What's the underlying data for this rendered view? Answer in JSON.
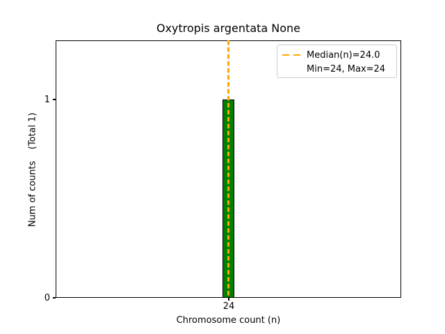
{
  "chart_data": {
    "type": "bar",
    "title": "Oxytropis argentata None",
    "xlabel": "Chromosome count (n)",
    "ylabel": "Num of counts    (Total 1)",
    "categories": [
      "24"
    ],
    "values": [
      1
    ],
    "total_counts": 1,
    "xticks": [
      "24"
    ],
    "yticks": [
      "0",
      "1"
    ],
    "ylim": [
      0,
      1.3
    ],
    "grid": false,
    "bar_color": "#008000",
    "bar_edge_color": "#000000",
    "median_line": {
      "value": 24.0,
      "color": "#FFA500",
      "style": "dashed",
      "orientation": "vertical"
    },
    "legend": {
      "position": "upper right",
      "entries": [
        {
          "label": "Median(n)=24.0",
          "marker": "dashed-line",
          "marker_color": "#FFA500"
        },
        {
          "label": "Min=24, Max=24",
          "marker": "none"
        }
      ]
    },
    "stats": {
      "median": 24.0,
      "min": 24,
      "max": 24
    }
  }
}
